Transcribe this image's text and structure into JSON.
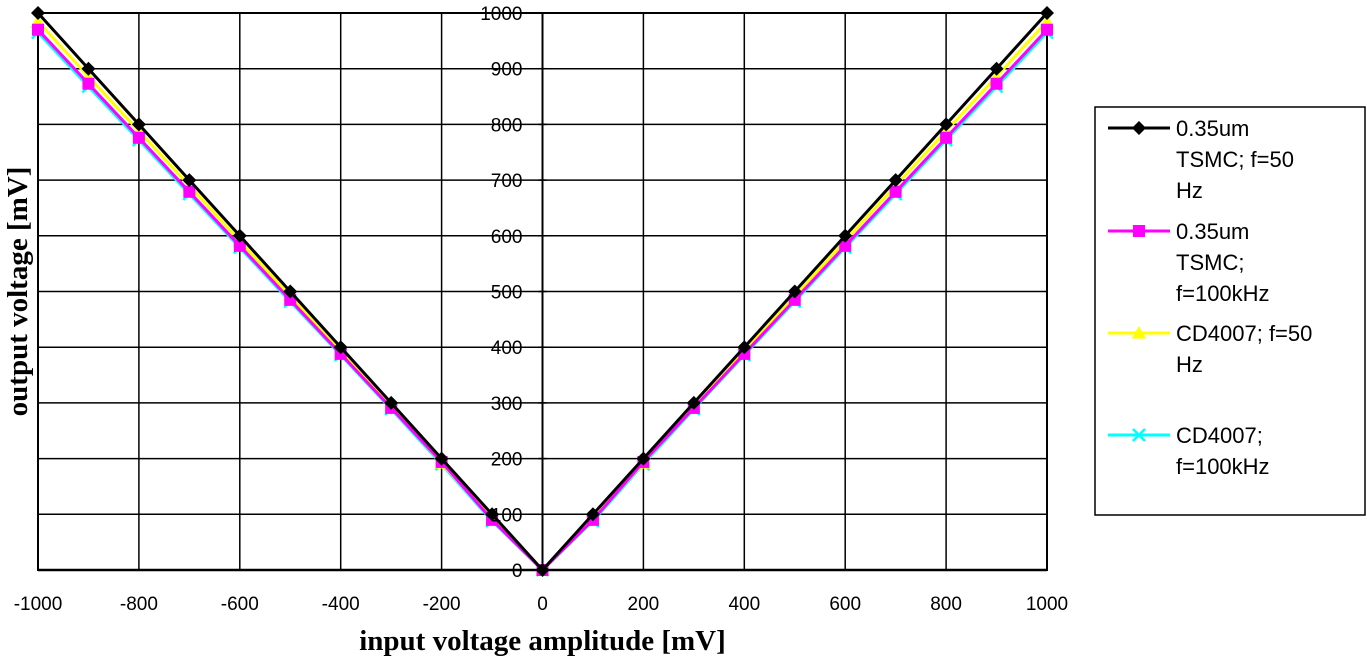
{
  "chart_data": {
    "type": "line",
    "title": "",
    "xlabel": "input voltage amplitude [mV]",
    "ylabel": "output voltage [mV]",
    "xlim": [
      -1000,
      1000
    ],
    "ylim": [
      0,
      1000
    ],
    "x_ticks": [
      -1000,
      -800,
      -600,
      -400,
      -200,
      0,
      200,
      400,
      600,
      800,
      1000
    ],
    "y_ticks": [
      0,
      100,
      200,
      300,
      400,
      500,
      600,
      700,
      800,
      900,
      1000
    ],
    "grid": true,
    "legend_position": "right",
    "x": [
      -1000,
      -900,
      -800,
      -700,
      -600,
      -500,
      -400,
      -300,
      -200,
      -100,
      0,
      100,
      200,
      300,
      400,
      500,
      600,
      700,
      800,
      900,
      1000
    ],
    "series": [
      {
        "name": "0.35um TSMC; f=50 Hz",
        "legend_lines": [
          "0.35um",
          "TSMC; f=50",
          "Hz"
        ],
        "color": "#000000",
        "marker": "diamond",
        "values": [
          1000,
          900,
          800,
          700,
          600,
          500,
          400,
          300,
          200,
          100,
          0,
          100,
          200,
          300,
          400,
          500,
          600,
          700,
          800,
          900,
          1000
        ]
      },
      {
        "name": "0.35um TSMC; f=100kHz",
        "legend_lines": [
          "0.35um",
          "TSMC;",
          "f=100kHz"
        ],
        "color": "#ff00ff",
        "marker": "square",
        "values": [
          970,
          873,
          776,
          679,
          582,
          485,
          388,
          291,
          194,
          90,
          0,
          90,
          194,
          291,
          388,
          485,
          582,
          679,
          776,
          873,
          970
        ]
      },
      {
        "name": "CD4007; f=50 Hz",
        "legend_lines": [
          "CD4007; f=50",
          "Hz"
        ],
        "color": "#ffff00",
        "marker": "triangle",
        "values": [
          985,
          886,
          788,
          690,
          591,
          492,
          394,
          295,
          192,
          92,
          0,
          92,
          192,
          295,
          394,
          492,
          591,
          690,
          788,
          886,
          985
        ]
      },
      {
        "name": "CD4007; f=100kHz",
        "legend_lines": [
          "CD4007;",
          "f=100kHz"
        ],
        "color": "#00ffff",
        "marker": "x",
        "values": [
          965,
          868,
          772,
          675,
          579,
          482,
          386,
          289,
          190,
          88,
          0,
          88,
          190,
          289,
          386,
          482,
          579,
          675,
          772,
          868,
          965
        ]
      }
    ]
  }
}
